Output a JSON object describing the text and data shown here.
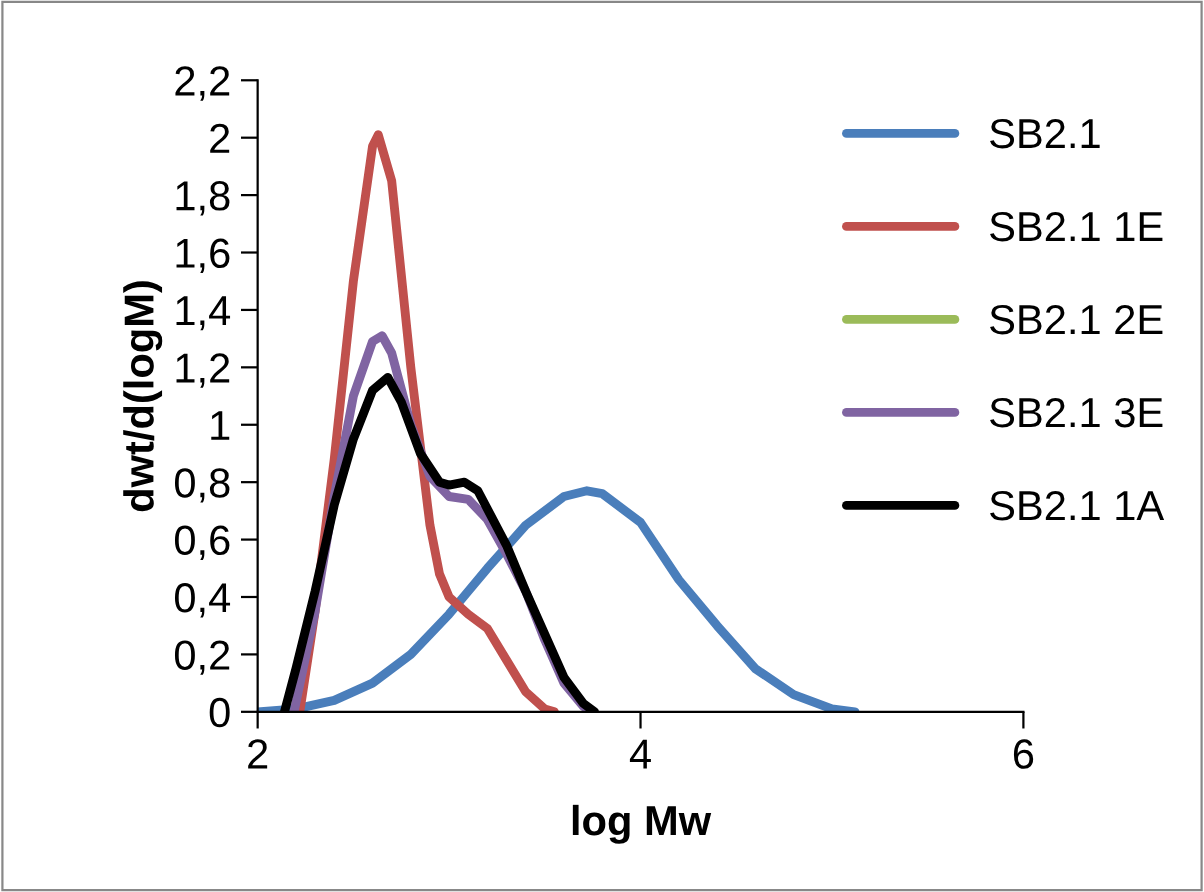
{
  "chart_data": {
    "type": "line",
    "xlabel": "log Mw",
    "ylabel": "dwt/d(logM)",
    "xlim": [
      2,
      6
    ],
    "xticks": [
      2,
      4,
      6
    ],
    "ylim": [
      0,
      2.2
    ],
    "yticks": [
      0,
      {
        "value": 0.2,
        "label": "0,2"
      },
      {
        "value": 0.4,
        "label": "0,4"
      },
      {
        "value": 0.6,
        "label": "0,6"
      },
      {
        "value": 0.8,
        "label": "0,8"
      },
      1,
      {
        "value": 1.2,
        "label": "1,2"
      },
      {
        "value": 1.4,
        "label": "1,4"
      },
      {
        "value": 1.6,
        "label": "1,6"
      },
      {
        "value": 1.8,
        "label": "1,8"
      },
      2,
      {
        "value": 2.2,
        "label": "2,2"
      }
    ],
    "grid": false,
    "legend": "right",
    "marker": "none",
    "line_style": "solid",
    "series": [
      {
        "name": "SB2.1",
        "color": "#4a7ebb",
        "x": [
          2.0,
          2.2,
          2.4,
          2.6,
          2.8,
          3.0,
          3.1,
          3.2,
          3.4,
          3.6,
          3.72,
          3.8,
          4.0,
          4.2,
          4.4,
          4.6,
          4.8,
          5.0,
          5.12
        ],
        "values": [
          0,
          0.01,
          0.04,
          0.1,
          0.2,
          0.34,
          0.42,
          0.5,
          0.65,
          0.75,
          0.77,
          0.76,
          0.66,
          0.46,
          0.3,
          0.15,
          0.06,
          0.01,
          0
        ]
      },
      {
        "name": "SB2.1 1E",
        "color": "#c0504d",
        "x": [
          2.22,
          2.3,
          2.4,
          2.5,
          2.6,
          2.63,
          2.7,
          2.8,
          2.9,
          2.95,
          3.0,
          3.1,
          3.2,
          3.3,
          3.4,
          3.5,
          3.55
        ],
        "values": [
          0,
          0.35,
          0.88,
          1.5,
          1.97,
          2.01,
          1.85,
          1.2,
          0.65,
          0.48,
          0.4,
          0.34,
          0.29,
          0.18,
          0.07,
          0.01,
          0
        ]
      },
      {
        "name": "SB2.1 2E",
        "color": "#9bbb59"
      },
      {
        "name": "SB2.1 3E",
        "color": "#8064a2",
        "x": [
          2.19,
          2.3,
          2.4,
          2.5,
          2.6,
          2.65,
          2.7,
          2.8,
          2.9,
          3.0,
          3.1,
          3.2,
          3.3,
          3.4,
          3.5,
          3.6,
          3.7,
          3.74
        ],
        "values": [
          0,
          0.35,
          0.75,
          1.1,
          1.29,
          1.31,
          1.25,
          1.0,
          0.82,
          0.75,
          0.74,
          0.67,
          0.55,
          0.42,
          0.25,
          0.1,
          0.02,
          0
        ]
      },
      {
        "name": "SB2.1 1A",
        "color": "#000000",
        "x": [
          2.14,
          2.2,
          2.3,
          2.4,
          2.5,
          2.6,
          2.68,
          2.75,
          2.85,
          2.95,
          3.0,
          3.08,
          3.15,
          3.3,
          3.4,
          3.5,
          3.6,
          3.7,
          3.76
        ],
        "values": [
          0,
          0.15,
          0.42,
          0.72,
          0.95,
          1.12,
          1.165,
          1.08,
          0.9,
          0.8,
          0.79,
          0.8,
          0.77,
          0.58,
          0.42,
          0.27,
          0.12,
          0.03,
          0
        ]
      }
    ]
  }
}
